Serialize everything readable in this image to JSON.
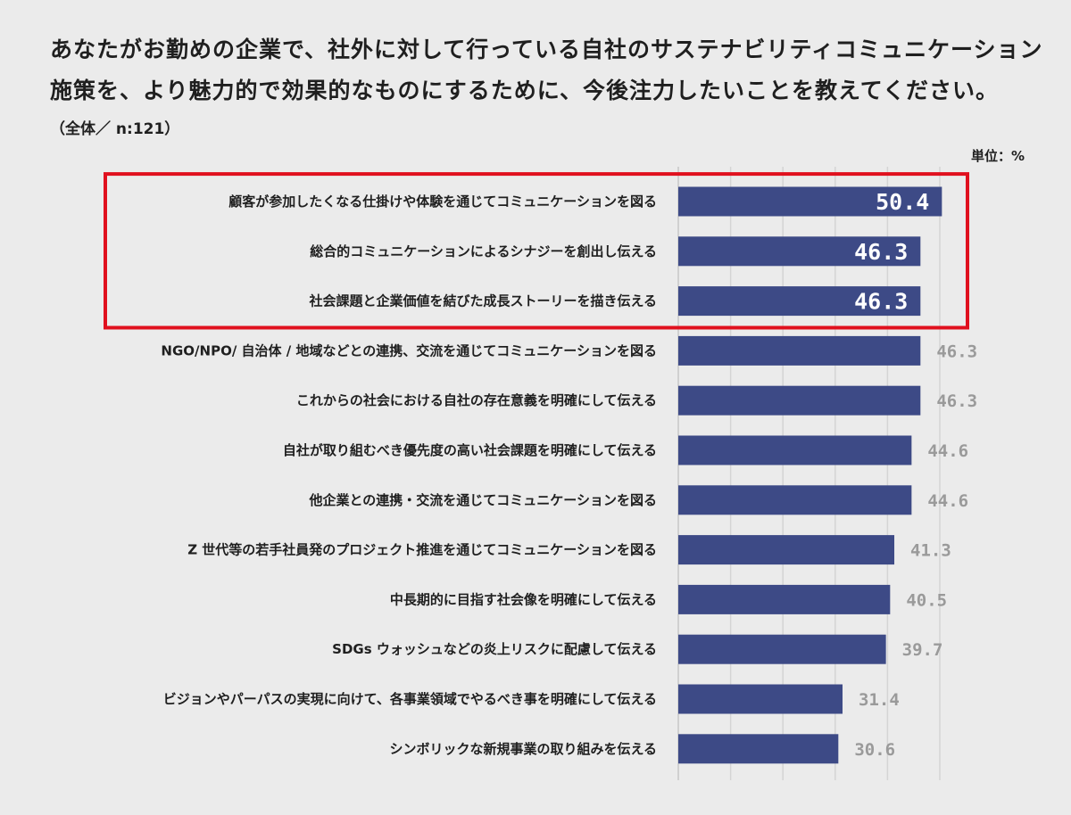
{
  "header": {
    "title_line1": "あなたがお勤めの企業で、社外に対して行っている自社のサステナビリティコミュニケーション",
    "title_line2": "施策を、より魅力的で効果的なものにするために、今後注力したいことを教えてください。",
    "subtitle": "（全体／ n:121）",
    "unit": "単位：%"
  },
  "colors": {
    "bar": "#3d4a86",
    "highlight_frame": "#e0101e",
    "value_outside": "#9a9a9a",
    "value_inside": "#ffffff",
    "gridline": "#d4d4d4",
    "background": "#ebebeb"
  },
  "chart_data": {
    "type": "bar",
    "orientation": "horizontal",
    "categories": [
      "顧客が参加したくなる仕掛けや体験を通じてコミュニケーションを図る",
      "総合的コミュニケーションによるシナジーを創出し伝える",
      "社会課題と企業価値を結びた成長ストーリーを描き伝える",
      "NGO/NPO/ 自治体 / 地域などとの連携、交流を通じてコミュニケーションを図る",
      "これからの社会における自社の存在意義を明確にして伝える",
      "自社が取り組むべき優先度の高い社会課題を明確にして伝える",
      "他企業との連携・交流を通じてコミュニケーションを図る",
      "Z 世代等の若手社員発のプロジェクト推進を通じてコミュニケーションを図る",
      "中長期的に目指す社会像を明確にして伝える",
      "SDGs ウォッシュなどの炎上リスクに配慮して伝える",
      "ビジョンやパーパスの実現に向けて、各事業領域でやるべき事を明確にして伝える",
      "シンボリックな新規事業の取り組みを伝える"
    ],
    "values": [
      50.4,
      46.3,
      46.3,
      46.3,
      46.3,
      44.6,
      44.6,
      41.3,
      40.5,
      39.7,
      31.4,
      30.6
    ],
    "highlighted_top": 3,
    "xlim": [
      0,
      50
    ],
    "grid": true
  }
}
